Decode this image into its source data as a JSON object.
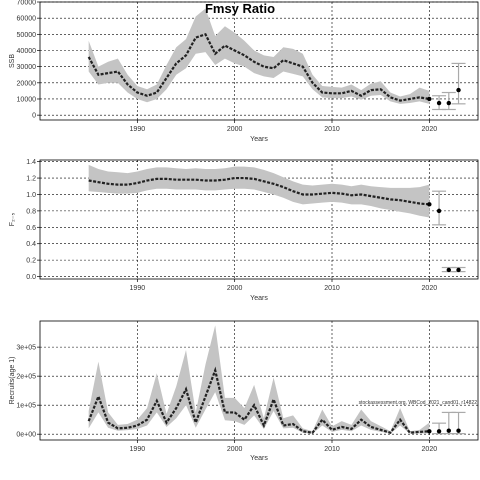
{
  "chart_data": [
    {
      "type": "line",
      "title": "Fmsy Ratio",
      "xlabel": "Years",
      "ylabel": "SSB",
      "xlim": [
        1980,
        2025
      ],
      "ylim": [
        -3000,
        70000
      ],
      "x_ticks": [
        1990,
        2000,
        2010,
        2020
      ],
      "x_tick_labels": [
        "1990",
        "2000",
        "2010",
        "2020"
      ],
      "y_ticks": [
        0,
        10000,
        20000,
        30000,
        40000,
        50000,
        60000,
        70000
      ],
      "y_tick_labels": [
        "0",
        "10000",
        "20000",
        "30000",
        "40000",
        "50000",
        "60000",
        "70000"
      ],
      "grid": true,
      "series": [
        {
          "x": [
            1985,
            1986,
            1987,
            1988,
            1989,
            1990,
            1991,
            1992,
            1993,
            1994,
            1995,
            1996,
            1997,
            1998,
            1999,
            2000,
            2001,
            2002,
            2003,
            2004,
            2005,
            2006,
            2007,
            2008,
            2009,
            2010,
            2011,
            2012,
            2013,
            2014,
            2015,
            2016,
            2017,
            2018,
            2019,
            2020
          ],
          "y": [
            36000,
            25000,
            26000,
            27000,
            19000,
            14000,
            12000,
            14000,
            23000,
            32000,
            37000,
            48000,
            50000,
            38000,
            43000,
            40000,
            37000,
            33000,
            30000,
            29000,
            34000,
            32000,
            30000,
            20000,
            14000,
            13500,
            13500,
            15000,
            12000,
            15500,
            16000,
            11000,
            9000,
            10000,
            11000,
            10000
          ],
          "lower": [
            27000,
            19000,
            20000,
            20000,
            14000,
            10000,
            8000,
            10000,
            16000,
            25000,
            29000,
            38000,
            39000,
            31000,
            35000,
            32000,
            30000,
            26000,
            24000,
            23000,
            27000,
            25500,
            24000,
            16000,
            11000,
            10500,
            10500,
            11500,
            9500,
            12000,
            12500,
            8500,
            7000,
            7500,
            8500,
            7000
          ],
          "upper": [
            46000,
            30000,
            33000,
            35000,
            25000,
            18000,
            16000,
            19000,
            31000,
            42000,
            47000,
            61000,
            66000,
            49000,
            55000,
            51000,
            46000,
            40000,
            37000,
            36000,
            42000,
            41000,
            38000,
            25000,
            18000,
            17500,
            17000,
            19000,
            15500,
            19500,
            21000,
            14000,
            11500,
            13000,
            17000,
            15000
          ]
        }
      ],
      "projection": {
        "x": [
          2021,
          2022,
          2023
        ],
        "y": [
          7500,
          7500,
          15500
        ],
        "lower": [
          3500,
          3500,
          7000
        ],
        "upper": [
          12000,
          14000,
          32000
        ]
      }
    },
    {
      "type": "line",
      "title": "",
      "xlabel": "Years",
      "ylabel": "F₂₋₅",
      "xlim": [
        1980,
        2025
      ],
      "ylim": [
        -0.03,
        1.42
      ],
      "x_ticks": [
        1990,
        2000,
        2010,
        2020
      ],
      "x_tick_labels": [
        "1990",
        "2000",
        "2010",
        "2020"
      ],
      "y_ticks": [
        0,
        0.2,
        0.4,
        0.6,
        0.8,
        1.0,
        1.2,
        1.4
      ],
      "y_tick_labels": [
        "0.0",
        "0.2",
        "0.4",
        "0.6",
        "0.8",
        "1.0",
        "1.2",
        "1.4"
      ],
      "grid": true,
      "series": [
        {
          "x": [
            1985,
            1986,
            1987,
            1988,
            1989,
            1990,
            1991,
            1992,
            1993,
            1994,
            1995,
            1996,
            1997,
            1998,
            1999,
            2000,
            2001,
            2002,
            2003,
            2004,
            2005,
            2006,
            2007,
            2008,
            2009,
            2010,
            2011,
            2012,
            2013,
            2014,
            2015,
            2016,
            2017,
            2018,
            2019,
            2020
          ],
          "y": [
            1.17,
            1.15,
            1.13,
            1.12,
            1.12,
            1.14,
            1.17,
            1.19,
            1.19,
            1.18,
            1.18,
            1.18,
            1.17,
            1.17,
            1.18,
            1.2,
            1.2,
            1.19,
            1.16,
            1.13,
            1.09,
            1.04,
            1.0,
            1.0,
            1.01,
            1.02,
            1.01,
            0.99,
            1.0,
            0.98,
            0.96,
            0.94,
            0.93,
            0.91,
            0.89,
            0.88
          ],
          "lower": [
            1.04,
            1.03,
            1.02,
            1.01,
            1.01,
            1.02,
            1.05,
            1.07,
            1.07,
            1.06,
            1.06,
            1.06,
            1.05,
            1.05,
            1.06,
            1.07,
            1.07,
            1.06,
            1.03,
            1.0,
            0.96,
            0.91,
            0.88,
            0.89,
            0.9,
            0.91,
            0.9,
            0.88,
            0.88,
            0.86,
            0.83,
            0.81,
            0.79,
            0.77,
            0.74,
            0.72
          ],
          "upper": [
            1.36,
            1.31,
            1.28,
            1.27,
            1.26,
            1.28,
            1.31,
            1.33,
            1.33,
            1.32,
            1.31,
            1.32,
            1.31,
            1.31,
            1.32,
            1.34,
            1.34,
            1.33,
            1.3,
            1.26,
            1.21,
            1.16,
            1.12,
            1.11,
            1.12,
            1.13,
            1.12,
            1.1,
            1.12,
            1.1,
            1.09,
            1.08,
            1.08,
            1.08,
            1.09,
            1.12
          ]
        }
      ],
      "projection": {
        "x": [
          2021,
          2022,
          2023
        ],
        "y": [
          0.8,
          0.08,
          0.08
        ],
        "lower": [
          0.63,
          0.06,
          0.06
        ],
        "upper": [
          1.04,
          0.11,
          0.11
        ]
      }
    },
    {
      "type": "line",
      "title": "",
      "xlabel": "Years",
      "ylabel": "Recruits(age 1)",
      "xlim": [
        1980,
        2025
      ],
      "ylim": [
        -20000,
        390000
      ],
      "x_ticks": [
        1990,
        2000,
        2010,
        2020
      ],
      "x_tick_labels": [
        "1990",
        "2000",
        "2010",
        "2020"
      ],
      "y_ticks": [
        0,
        100000,
        200000,
        300000
      ],
      "y_tick_labels": [
        "0e+00",
        "1e+05",
        "2e+05",
        "3e+05"
      ],
      "grid": true,
      "annotation": "stockassessment.org, WBCod_2021_cand01, r14822",
      "series": [
        {
          "x": [
            1985,
            1986,
            1987,
            1988,
            1989,
            1990,
            1991,
            1992,
            1993,
            1994,
            1995,
            1996,
            1997,
            1998,
            1999,
            2000,
            2001,
            2002,
            2003,
            2004,
            2005,
            2006,
            2007,
            2008,
            2009,
            2010,
            2011,
            2012,
            2013,
            2014,
            2015,
            2016,
            2017,
            2018,
            2019,
            2020
          ],
          "y": [
            45000,
            130000,
            40000,
            20000,
            22000,
            30000,
            50000,
            115000,
            40000,
            90000,
            155000,
            40000,
            130000,
            220000,
            75000,
            75000,
            50000,
            100000,
            30000,
            120000,
            30000,
            35000,
            10000,
            5000,
            50000,
            15000,
            25000,
            18000,
            50000,
            25000,
            15000,
            5000,
            50000,
            5000,
            8000,
            10000
          ],
          "lower": [
            20000,
            75000,
            22000,
            12000,
            14000,
            18000,
            30000,
            75000,
            25000,
            55000,
            100000,
            22000,
            85000,
            145000,
            48000,
            45000,
            32000,
            65000,
            18000,
            80000,
            20000,
            22000,
            5000,
            2000,
            30000,
            8000,
            15000,
            10000,
            30000,
            15000,
            8000,
            2000,
            30000,
            2000,
            3000,
            3000
          ],
          "upper": [
            80000,
            250000,
            75000,
            32000,
            35000,
            50000,
            90000,
            210000,
            70000,
            165000,
            290000,
            75000,
            240000,
            375000,
            125000,
            125000,
            90000,
            170000,
            55000,
            195000,
            55000,
            65000,
            20000,
            10000,
            85000,
            27000,
            45000,
            32000,
            85000,
            45000,
            28000,
            10000,
            90000,
            10000,
            15000,
            40000
          ]
        }
      ],
      "projection": {
        "x": [
          2021,
          2022,
          2023
        ],
        "y": [
          10000,
          12000,
          12000
        ],
        "lower": [
          2000,
          2000,
          2000
        ],
        "upper": [
          38000,
          75000,
          75000
        ]
      }
    }
  ]
}
